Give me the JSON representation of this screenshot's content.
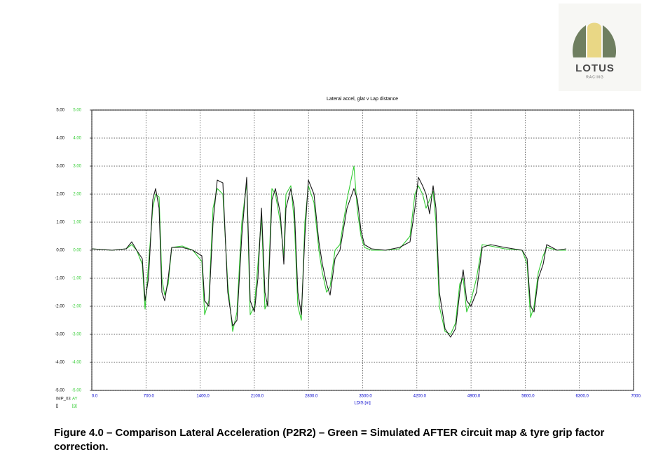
{
  "chart_data": {
    "type": "line",
    "title": "Lateral accel, glat v Lap distance",
    "x_label": "LDIS [m]",
    "x": [
      0,
      263,
      444,
      516,
      580,
      652,
      688,
      733,
      788,
      824,
      869,
      906,
      942,
      987,
      1032,
      1168,
      1304,
      1422,
      1458,
      1512,
      1567,
      1621,
      1693,
      1757,
      1820,
      1875,
      1938,
      2001,
      2047,
      2101,
      2146,
      2192,
      2237,
      2273,
      2327,
      2373,
      2436,
      2481,
      2508,
      2572,
      2617,
      2662,
      2708,
      2753,
      2798,
      2871,
      2934,
      2979,
      3034,
      3079,
      3142,
      3206,
      3297,
      3387,
      3432,
      3478,
      3523,
      3613,
      3794,
      3976,
      4111,
      4175,
      4220,
      4274,
      4319,
      4365,
      4410,
      4446,
      4491,
      4564,
      4636,
      4700,
      4754,
      4799,
      4844,
      4899,
      4971,
      5044,
      5153,
      5334,
      5560,
      5624,
      5669,
      5714,
      5769,
      5832,
      5877,
      6013,
      6131
    ],
    "series": [
      {
        "name": "IMP_03",
        "unit": "[]",
        "color": "#1a1a1a",
        "values": [
          0.05,
          0,
          0.05,
          0.3,
          0,
          -0.3,
          -1.8,
          -1.0,
          1.8,
          2.2,
          1.5,
          -1.5,
          -1.8,
          -1.0,
          0.1,
          0.1,
          0,
          -0.2,
          -1.8,
          -2.0,
          1.0,
          2.5,
          2.4,
          -1.5,
          -2.7,
          -2.5,
          0.5,
          2.6,
          -1.8,
          -2.2,
          -1.0,
          1.5,
          -1.5,
          -2.0,
          1.8,
          2.2,
          1.3,
          -0.5,
          1.5,
          2.2,
          1.5,
          -1.5,
          -2.3,
          0.5,
          2.5,
          2.0,
          0.3,
          -0.5,
          -1.2,
          -1.6,
          -0.3,
          0,
          1.5,
          2.2,
          1.8,
          0.7,
          0.2,
          0.05,
          0,
          0.1,
          0.3,
          1.5,
          2.6,
          2.3,
          2.0,
          1.3,
          2.3,
          1.5,
          -1.5,
          -2.8,
          -3.1,
          -2.8,
          -1.5,
          -0.7,
          -1.8,
          -2.0,
          -1.5,
          0.1,
          0.2,
          0.1,
          0,
          -0.3,
          -2.0,
          -2.2,
          -1.0,
          -0.5,
          0.2,
          0,
          0.05
        ]
      },
      {
        "name": "AY",
        "unit": "[g]",
        "color": "#33cc33",
        "axis": "y2",
        "values": [
          0.05,
          0,
          0.05,
          0.2,
          0,
          -0.5,
          -2.1,
          -0.5,
          1.5,
          2.0,
          1.9,
          -1.0,
          -1.6,
          -1.2,
          0.1,
          0.15,
          0,
          -0.4,
          -2.3,
          -1.8,
          1.5,
          2.2,
          2.0,
          -1.2,
          -2.9,
          -2.2,
          1.0,
          2.4,
          -2.3,
          -2.0,
          -0.5,
          1.2,
          -2.1,
          -1.8,
          2.2,
          2.0,
          1.0,
          -0.2,
          2.0,
          2.3,
          1.0,
          -2.0,
          -2.5,
          1.0,
          2.3,
          1.7,
          0.0,
          -0.8,
          -1.5,
          -1.3,
          0.0,
          0.2,
          1.8,
          3.0,
          1.4,
          0.5,
          0.1,
          0.0,
          0,
          0.05,
          0.5,
          2.0,
          2.3,
          2.0,
          1.5,
          1.8,
          2.1,
          1.0,
          -2.0,
          -2.9,
          -3.0,
          -2.6,
          -1.2,
          -1.0,
          -2.2,
          -1.8,
          -1.0,
          0.2,
          0.15,
          0.05,
          0,
          -0.5,
          -2.4,
          -2.0,
          -0.8,
          -0.2,
          0.1,
          0,
          0.0
        ]
      }
    ],
    "xlim": [
      0,
      7000
    ],
    "xticks": [
      {
        "value": 0,
        "label": "0.0"
      },
      {
        "value": 700,
        "label": "700.0"
      },
      {
        "value": 1400,
        "label": "1400.0"
      },
      {
        "value": 2100,
        "label": "2100.0"
      },
      {
        "value": 2800,
        "label": "2800.0"
      },
      {
        "value": 3500,
        "label": "3500.0"
      },
      {
        "value": 4200,
        "label": "4200.0"
      },
      {
        "value": 4900,
        "label": "4900.0"
      },
      {
        "value": 5600,
        "label": "5600.0"
      },
      {
        "value": 6300,
        "label": "6300.0"
      },
      {
        "value": 7000,
        "label": "7000."
      }
    ],
    "ylim": [
      -5,
      5
    ],
    "yticks": [
      {
        "value": 5,
        "label": "5.00"
      },
      {
        "value": 4,
        "label": "4.00"
      },
      {
        "value": 3,
        "label": "3.00"
      },
      {
        "value": 2,
        "label": "2.00"
      },
      {
        "value": 1,
        "label": "1.00"
      },
      {
        "value": 0,
        "label": "0.00"
      },
      {
        "value": -1,
        "label": "-1.00"
      },
      {
        "value": -2,
        "label": "-2.00"
      },
      {
        "value": -3,
        "label": "-3.00"
      },
      {
        "value": -4,
        "label": "-4.00"
      },
      {
        "value": -5,
        "label": "-5.00"
      }
    ],
    "y2lim": [
      -5,
      5
    ],
    "y2ticks": [
      {
        "value": 5,
        "label": "5.00"
      },
      {
        "value": 4,
        "label": "4.00"
      },
      {
        "value": 3,
        "label": "3.00"
      },
      {
        "value": 2,
        "label": "2.00"
      },
      {
        "value": 1,
        "label": "1.00"
      },
      {
        "value": 0,
        "label": "0.00"
      },
      {
        "value": -1,
        "label": "-1.00"
      },
      {
        "value": -2,
        "label": "-2.00"
      },
      {
        "value": -3,
        "label": "-3.00"
      },
      {
        "value": -4,
        "label": "-4.00"
      },
      {
        "value": -5,
        "label": "-5.00"
      }
    ],
    "grid": true
  },
  "logo": {
    "name": "LOTUS",
    "subtitle": "RACING"
  },
  "caption": "Figure 4.0 – Comparison Lateral Acceleration (P2R2) – Green = Simulated AFTER circuit map & tyre grip factor correction."
}
